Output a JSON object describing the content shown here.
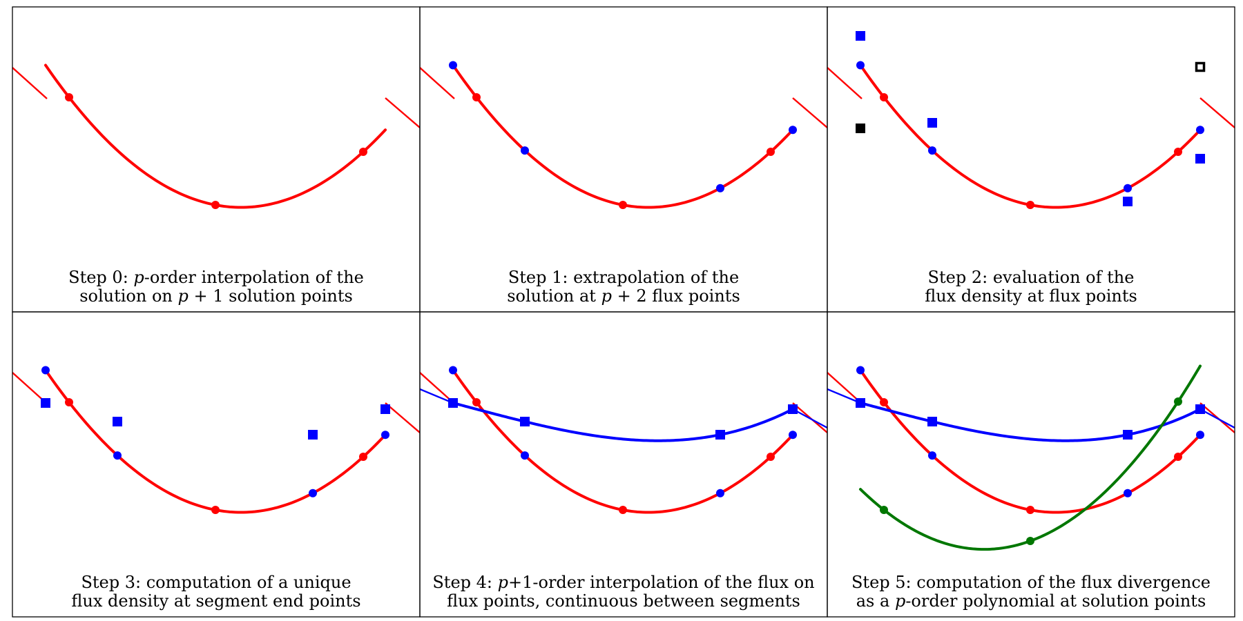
{
  "panels": [
    {
      "id": "step0",
      "caption_line1": [
        "Step 0: ",
        "p",
        "-order interpolation of the"
      ],
      "caption_line2": [
        "solution on ",
        "p",
        " + 1 solution points"
      ]
    },
    {
      "id": "step1",
      "caption_line1": [
        "Step 1: extrapolation of the"
      ],
      "caption_line2": [
        "solution at ",
        "p",
        " + 2 flux points"
      ]
    },
    {
      "id": "step2",
      "caption_line1": [
        "Step 2: evaluation of the"
      ],
      "caption_line2": [
        "flux density at flux points"
      ]
    },
    {
      "id": "step3",
      "caption_line1": [
        "Step 3: computation of a unique"
      ],
      "caption_line2": [
        "flux density at segment end points"
      ]
    },
    {
      "id": "step4",
      "caption_line1": [
        "Step 4: ",
        "p",
        "+1-order interpolation of the flux on"
      ],
      "caption_line2": [
        "flux points, continuous between segments"
      ]
    },
    {
      "id": "step5",
      "caption_line1": [
        "Step 5: computation of the flux divergence"
      ],
      "caption_line2": [
        "as a ",
        "p",
        "-order polynomial at solution points"
      ]
    }
  ],
  "colors": {
    "solution": "#ff0000",
    "flux_points": "#0000ff",
    "flux": "#0000ff",
    "divergence": "#007700",
    "neighbor_values": "#000000"
  }
}
